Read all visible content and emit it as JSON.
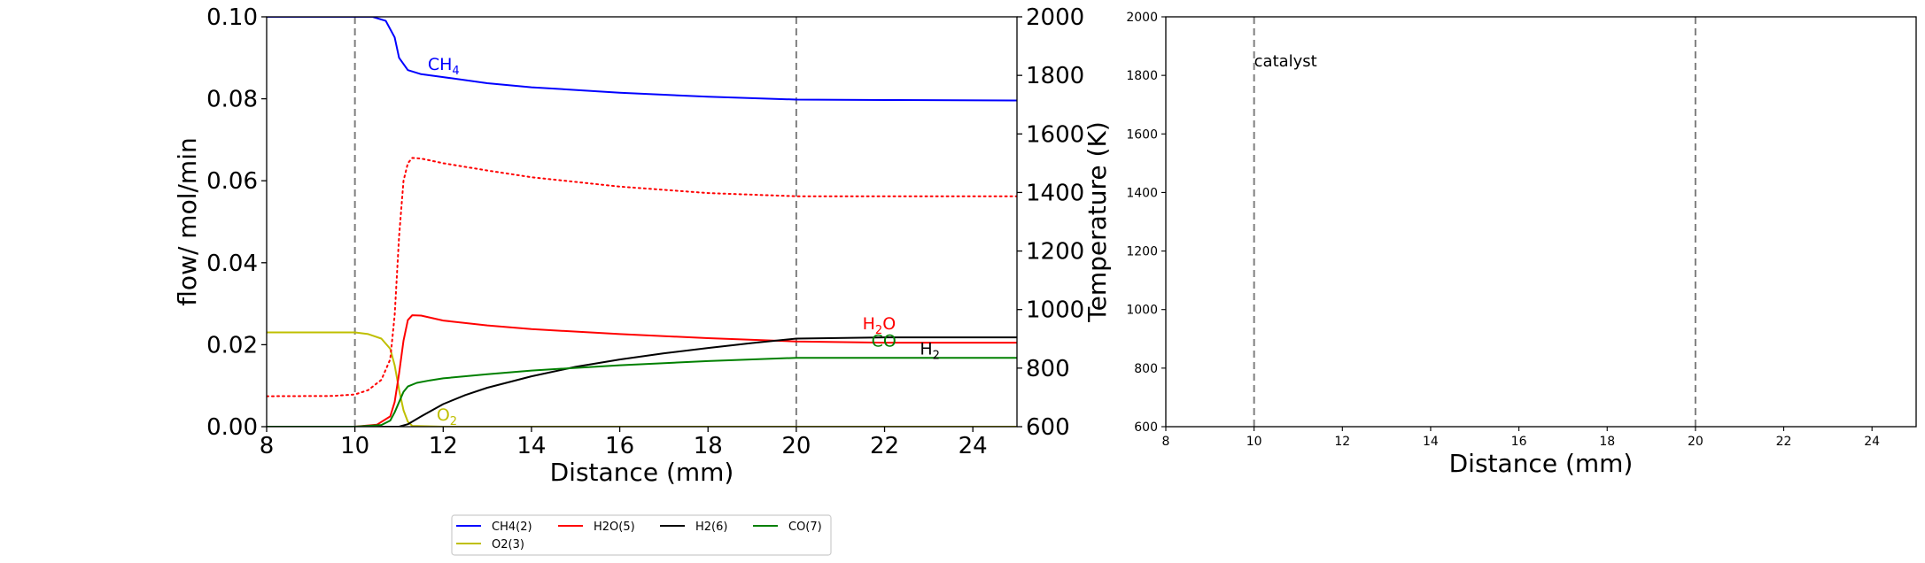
{
  "chart_data": [
    {
      "type": "line",
      "panel": "left",
      "xlabel": "Distance (mm)",
      "ylabel": "flow/ mol/min",
      "y2label": "Temperature (K)",
      "xlim": [
        8,
        25
      ],
      "ylim": [
        0,
        0.1
      ],
      "y2lim": [
        600,
        2000
      ],
      "x_ticks": [
        "8",
        "10",
        "12",
        "14",
        "16",
        "18",
        "20",
        "22",
        "24"
      ],
      "y_ticks": [
        "0.00",
        "0.02",
        "0.04",
        "0.06",
        "0.08",
        "0.10"
      ],
      "y2_ticks": [
        "600",
        "800",
        "1000",
        "1200",
        "1400",
        "1600",
        "1800",
        "2000"
      ],
      "vlines": [
        10,
        20
      ],
      "grid": false,
      "series": [
        {
          "name": "CH4(2)",
          "color": "#0000ff",
          "x": [
            8,
            10,
            10.4,
            10.7,
            10.9,
            11.0,
            11.2,
            11.5,
            12,
            13,
            14,
            16,
            18,
            20,
            22,
            25
          ],
          "y": [
            0.1,
            0.1,
            0.1,
            0.099,
            0.095,
            0.09,
            0.087,
            0.086,
            0.0853,
            0.0838,
            0.0828,
            0.0815,
            0.0805,
            0.0798,
            0.0797,
            0.0796
          ]
        },
        {
          "name": "O2(3)",
          "color": "#bfbf00",
          "x": [
            8,
            10,
            10.3,
            10.6,
            10.8,
            10.9,
            11.0,
            11.1,
            11.2,
            11.3,
            12,
            25
          ],
          "y": [
            0.023,
            0.023,
            0.0226,
            0.0215,
            0.019,
            0.015,
            0.009,
            0.004,
            0.0012,
            0.0002,
            0.0,
            0.0
          ]
        },
        {
          "name": "H2O(5)",
          "color": "#ff0000",
          "x": [
            8,
            10,
            10.5,
            10.8,
            10.9,
            11.0,
            11.1,
            11.2,
            11.3,
            11.5,
            12,
            13,
            14,
            16,
            18,
            20,
            22,
            25
          ],
          "y": [
            0.0,
            0.0,
            0.0005,
            0.0025,
            0.006,
            0.013,
            0.021,
            0.026,
            0.0272,
            0.0271,
            0.0259,
            0.0247,
            0.0238,
            0.0226,
            0.0216,
            0.0208,
            0.0205,
            0.0205
          ]
        },
        {
          "name": "H2(6)",
          "color": "#000000",
          "x": [
            8,
            11,
            11.2,
            11.5,
            12,
            12.5,
            13,
            14,
            15,
            16,
            17,
            18,
            19,
            20,
            22,
            25
          ],
          "y": [
            0.0,
            0.0,
            0.0006,
            0.0025,
            0.0055,
            0.0077,
            0.0095,
            0.0123,
            0.0146,
            0.0164,
            0.0179,
            0.0192,
            0.0204,
            0.0215,
            0.0218,
            0.0218
          ]
        },
        {
          "name": "CO(7)",
          "color": "#008000",
          "x": [
            8,
            10,
            10.6,
            10.8,
            10.9,
            11.0,
            11.1,
            11.2,
            11.4,
            11.7,
            12,
            13,
            14,
            16,
            18,
            20,
            22,
            25
          ],
          "y": [
            0.0,
            0.0,
            0.0004,
            0.0015,
            0.0035,
            0.006,
            0.0085,
            0.0098,
            0.0107,
            0.0113,
            0.0118,
            0.0128,
            0.0137,
            0.015,
            0.016,
            0.0168,
            0.0168,
            0.0168
          ]
        },
        {
          "color": "#ff0000",
          "dotted": true,
          "axis": "y2",
          "x": [
            8,
            9.5,
            10,
            10.3,
            10.6,
            10.8,
            10.9,
            11.0,
            11.1,
            11.2,
            11.3,
            11.5,
            12,
            13,
            14,
            16,
            18,
            20,
            22,
            25
          ],
          "y": [
            704,
            705,
            710,
            725,
            760,
            830,
            980,
            1250,
            1440,
            1500,
            1518,
            1516,
            1500,
            1475,
            1452,
            1420,
            1398,
            1387,
            1387,
            1387
          ]
        }
      ],
      "annotations": [
        {
          "text": "CH",
          "sub": "4",
          "color": "#0000ff",
          "x": 11.65,
          "y": 0.087
        },
        {
          "text": "H",
          "sub": "2",
          "after": "O",
          "color": "#ff0000",
          "x": 21.5,
          "y": 0.0238
        },
        {
          "text": "CO",
          "color": "#008000",
          "x": 21.7,
          "y": 0.0195
        },
        {
          "text": "H",
          "sub": "2",
          "color": "#000000",
          "x": 22.8,
          "y": 0.0176
        },
        {
          "text": "O",
          "sub": "2",
          "color": "#bfbf00",
          "x": 11.85,
          "y": 0.0015
        }
      ],
      "legend": {
        "placement": "below",
        "entries": [
          {
            "label": "CH4(2)",
            "color": "#0000ff"
          },
          {
            "label": "H2O(5)",
            "color": "#ff0000"
          },
          {
            "label": "H2(6)",
            "color": "#000000"
          },
          {
            "label": "CO(7)",
            "color": "#008000"
          },
          {
            "label": "O2(3)",
            "color": "#bfbf00"
          }
        ]
      }
    },
    {
      "type": "line",
      "panel": "right",
      "xlabel": "Distance (mm)",
      "xlim": [
        8,
        25
      ],
      "ylim": [
        600,
        2000
      ],
      "x_ticks": [
        "8",
        "10",
        "12",
        "14",
        "16",
        "18",
        "20",
        "22",
        "24"
      ],
      "y_ticks": [
        "600",
        "800",
        "1000",
        "1200",
        "1400",
        "1600",
        "1800",
        "2000"
      ],
      "vlines": [
        10,
        20
      ],
      "annotations": [
        {
          "text": "catalyst",
          "color": "#000000",
          "x": 10.0,
          "y": 1830
        }
      ],
      "series": []
    }
  ]
}
